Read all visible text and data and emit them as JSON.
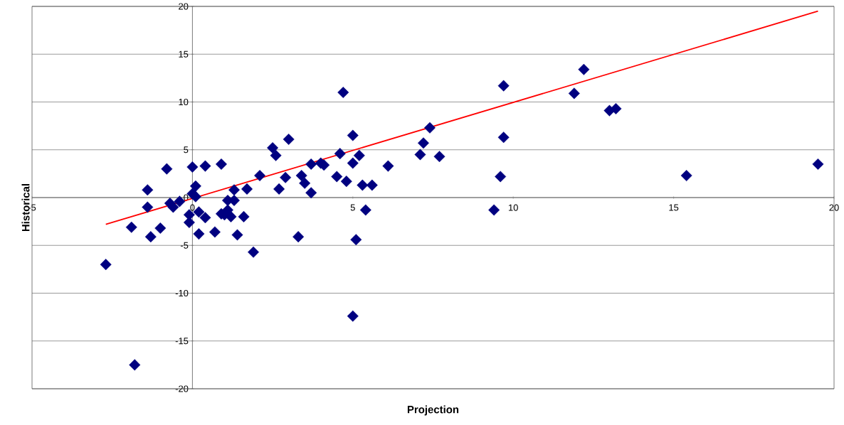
{
  "chart_data": {
    "type": "scatter",
    "xlabel": "Projection",
    "ylabel": "Historical",
    "xlim": [
      -5,
      20
    ],
    "ylim": [
      -20,
      20
    ],
    "xticks": [
      -5,
      0,
      5,
      10,
      15,
      20
    ],
    "yticks": [
      -20,
      -15,
      -10,
      -5,
      0,
      5,
      10,
      15,
      20
    ],
    "grid": "y",
    "marker": "diamond",
    "series": [
      {
        "type": "scatter",
        "color": "#000080",
        "x": [
          -2.7,
          -1.8,
          -0.8,
          -1.4,
          -1.4,
          -1.9,
          -1.3,
          -1.0,
          -0.7,
          -0.6,
          -0.4,
          0.0,
          0.4,
          0.9,
          0.1,
          0.0,
          0.1,
          -0.1,
          -0.1,
          0.2,
          0.4,
          0.2,
          0.7,
          0.9,
          1.0,
          1.1,
          1.1,
          1.2,
          1.3,
          1.3,
          1.4,
          1.6,
          1.7,
          1.9,
          2.1,
          2.5,
          2.6,
          3.0,
          2.9,
          2.7,
          3.3,
          4.7,
          5.0,
          7.4,
          7.2,
          7.1,
          7.7,
          4.6,
          5.2,
          5.0,
          3.7,
          4.0,
          4.1,
          6.1,
          3.4,
          3.5,
          3.7,
          4.5,
          4.8,
          5.3,
          5.6,
          5.4,
          5.1,
          5.0,
          12.2,
          9.7,
          11.9,
          13.0,
          13.2,
          9.7,
          9.6,
          9.4,
          15.4,
          19.5
        ],
        "values": [
          -7.0,
          -17.5,
          3.0,
          0.8,
          -1.0,
          -3.1,
          -4.1,
          -3.2,
          -0.6,
          -1.0,
          -0.4,
          3.2,
          3.3,
          3.5,
          1.2,
          0.4,
          0.1,
          -1.8,
          -2.6,
          -1.5,
          -2.1,
          -3.8,
          -3.6,
          -1.7,
          -1.8,
          -1.3,
          -0.3,
          -2.0,
          0.8,
          -0.3,
          -3.9,
          -2.0,
          0.9,
          -5.7,
          2.3,
          5.2,
          4.4,
          6.1,
          2.1,
          0.9,
          -4.1,
          11.0,
          6.5,
          7.3,
          5.7,
          4.5,
          4.3,
          4.6,
          4.4,
          3.6,
          3.5,
          3.6,
          3.4,
          3.3,
          2.3,
          1.5,
          0.5,
          2.2,
          1.7,
          1.3,
          1.3,
          -1.3,
          -4.4,
          -12.4,
          13.4,
          11.7,
          10.9,
          9.1,
          9.3,
          6.3,
          2.2,
          -1.3,
          2.3,
          3.5
        ]
      },
      {
        "type": "line",
        "color": "#ff0000",
        "marker": "none",
        "x": [
          -2.7,
          19.5
        ],
        "values": [
          -2.8,
          19.5
        ]
      }
    ]
  }
}
